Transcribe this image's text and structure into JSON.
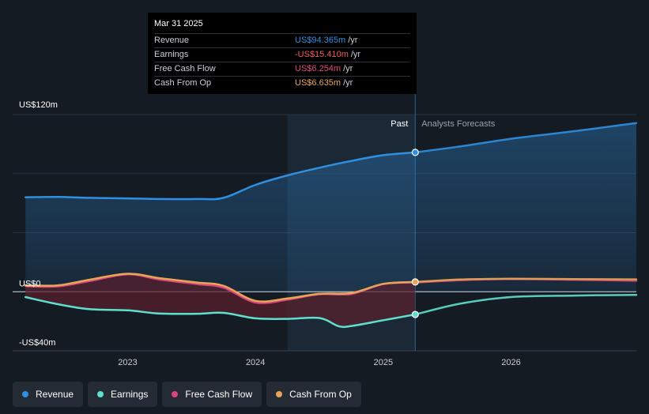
{
  "tooltip": {
    "date": "Mar 31 2025",
    "rows": [
      {
        "label": "Revenue",
        "value": "US$94.365m",
        "unit": "/yr",
        "color": "#2f8fe0"
      },
      {
        "label": "Earnings",
        "value": "-US$15.410m",
        "unit": "/yr",
        "color": "#f15b5b"
      },
      {
        "label": "Free Cash Flow",
        "value": "US$6.254m",
        "unit": "/yr",
        "color": "#e0487c"
      },
      {
        "label": "Cash From Op",
        "value": "US$6.635m",
        "unit": "/yr",
        "color": "#e7a657"
      }
    ]
  },
  "legend": [
    {
      "label": "Revenue",
      "color": "#2f8fe0"
    },
    {
      "label": "Earnings",
      "color": "#5fe0cc"
    },
    {
      "label": "Free Cash Flow",
      "color": "#d9457c"
    },
    {
      "label": "Cash From Op",
      "color": "#e7a657"
    }
  ],
  "chart_data": {
    "type": "line",
    "x_range": [
      2022.1,
      2026.98
    ],
    "ylim": [
      -40,
      120
    ],
    "y_tick_labels": [
      {
        "value": 120,
        "label": "US$120m"
      },
      {
        "value": 0,
        "label": "US$0"
      },
      {
        "value": -40,
        "label": "-US$40m"
      }
    ],
    "x_ticks": [
      {
        "value": 2023,
        "label": "2023"
      },
      {
        "value": 2024,
        "label": "2024"
      },
      {
        "value": 2025,
        "label": "2025"
      },
      {
        "value": 2026,
        "label": "2026"
      }
    ],
    "past_label": "Past",
    "forecast_label": "Analysts Forecasts",
    "divider_x": 2025.25,
    "highlight_start_x": 2024.25,
    "series": [
      {
        "name": "Revenue",
        "color": "#2f8fe0",
        "points": [
          [
            2022.2,
            64
          ],
          [
            2022.45,
            64.2
          ],
          [
            2022.7,
            63.6
          ],
          [
            2023.0,
            63.2
          ],
          [
            2023.25,
            62.8
          ],
          [
            2023.55,
            62.8
          ],
          [
            2023.75,
            63.6
          ],
          [
            2024.0,
            72.4
          ],
          [
            2024.25,
            78.8
          ],
          [
            2024.5,
            84
          ],
          [
            2024.75,
            88.6
          ],
          [
            2025.0,
            92.5
          ],
          [
            2025.25,
            94.365
          ],
          [
            2025.6,
            98.4
          ],
          [
            2026.0,
            103.6
          ],
          [
            2026.5,
            108.8
          ],
          [
            2026.98,
            114.3
          ]
        ]
      },
      {
        "name": "Earnings",
        "color": "#5fe0cc",
        "points": [
          [
            2022.2,
            -3.6
          ],
          [
            2022.45,
            -8.4
          ],
          [
            2022.7,
            -11.8
          ],
          [
            2023.0,
            -12.6
          ],
          [
            2023.25,
            -14.8
          ],
          [
            2023.55,
            -14.9
          ],
          [
            2023.75,
            -14.3
          ],
          [
            2024.0,
            -18
          ],
          [
            2024.25,
            -18.4
          ],
          [
            2024.5,
            -17.8
          ],
          [
            2024.65,
            -23.3
          ],
          [
            2024.75,
            -23.2
          ],
          [
            2025.0,
            -19.3
          ],
          [
            2025.25,
            -15.41
          ],
          [
            2025.6,
            -8.1
          ],
          [
            2026.0,
            -3.6
          ],
          [
            2026.5,
            -2.6
          ],
          [
            2026.98,
            -2.1
          ]
        ]
      },
      {
        "name": "Free Cash Flow",
        "color": "#d9457c",
        "points": [
          [
            2022.2,
            3.8
          ],
          [
            2022.45,
            3.6
          ],
          [
            2022.7,
            7.2
          ],
          [
            2023.0,
            11.8
          ],
          [
            2023.25,
            8.3
          ],
          [
            2023.55,
            5.1
          ],
          [
            2023.75,
            2.8
          ],
          [
            2024.0,
            -7.3
          ],
          [
            2024.25,
            -5.4
          ],
          [
            2024.5,
            -1.7
          ],
          [
            2024.75,
            -1.5
          ],
          [
            2025.0,
            5.2
          ],
          [
            2025.25,
            6.254
          ],
          [
            2025.6,
            7.8
          ],
          [
            2026.0,
            8.6
          ],
          [
            2026.5,
            8.1
          ],
          [
            2026.98,
            7.4
          ]
        ]
      },
      {
        "name": "Cash From Op",
        "color": "#e7a657",
        "points": [
          [
            2022.2,
            4.4
          ],
          [
            2022.45,
            4.3
          ],
          [
            2022.7,
            8.1
          ],
          [
            2023.0,
            12.2
          ],
          [
            2023.25,
            9.2
          ],
          [
            2023.55,
            6.2
          ],
          [
            2023.75,
            4
          ],
          [
            2024.0,
            -6.2
          ],
          [
            2024.25,
            -4.6
          ],
          [
            2024.5,
            -1.4
          ],
          [
            2024.75,
            -0.9
          ],
          [
            2025.0,
            5.3
          ],
          [
            2025.25,
            6.635
          ],
          [
            2025.6,
            8.3
          ],
          [
            2026.0,
            8.8
          ],
          [
            2026.5,
            8.6
          ],
          [
            2026.98,
            8.4
          ]
        ]
      }
    ]
  }
}
